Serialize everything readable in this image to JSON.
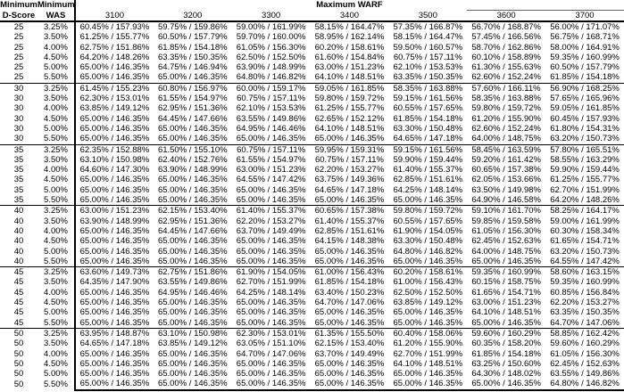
{
  "colors": {
    "text": "#000000",
    "background": "#ffffff",
    "border": "#000000"
  },
  "header": {
    "row1_col1": "Minimum",
    "row1_col2": "Minimum",
    "warf_label": "Maximum WARF",
    "row2_col1": "D-Score",
    "row2_col2": "WAS",
    "warf_columns": [
      "3100",
      "3200",
      "3300",
      "3400",
      "3500",
      "3600",
      "3700"
    ]
  },
  "table": {
    "groups": [
      {
        "d_score": "25",
        "rows": [
          {
            "was": "3.25%",
            "values": [
              "60.45% / 157.93%",
              "59.75% / 159.86%",
              "59.00% / 161.99%",
              "58.15% / 164.47%",
              "57.35% / 166.87%",
              "56.70% / 168.87%",
              "56.00% / 171.07%"
            ]
          },
          {
            "was": "3.50%",
            "values": [
              "61.25% / 155.77%",
              "60.50% / 157.79%",
              "59.70% / 160.00%",
              "58.95% / 162.14%",
              "58.15% / 164.47%",
              "57.45% / 166.56%",
              "56.75% / 168.71%"
            ]
          },
          {
            "was": "4.00%",
            "values": [
              "62.75% / 151.86%",
              "61.85% / 154.18%",
              "61.05% / 156.30%",
              "60.20% / 158.61%",
              "59.50% / 160.57%",
              "58.70% / 162.86%",
              "58.00% / 164.91%"
            ]
          },
          {
            "was": "4.50%",
            "values": [
              "64.20% / 148.26%",
              "63.35% / 150.35%",
              "62.50% / 152.50%",
              "61.60% / 154.84%",
              "60.75% / 157.11%",
              "60.10% / 158.89%",
              "59.35% / 160.99%"
            ]
          },
          {
            "was": "5.00%",
            "values": [
              "65.00% / 146.35%",
              "64.75% / 146.94%",
              "63.90% / 148.99%",
              "63.00% / 151.23%",
              "62.10% / 153.53%",
              "61.30% / 155.63%",
              "60.50% / 157.79%"
            ]
          },
          {
            "was": "5.50%",
            "values": [
              "65.00% / 146.35%",
              "65.00% / 146.35%",
              "64.80% / 146.82%",
              "64.10% / 148.51%",
              "63.35% / 150.35%",
              "62.60% / 152.24%",
              "61.85% / 154.18%"
            ]
          }
        ]
      },
      {
        "d_score": "30",
        "rows": [
          {
            "was": "3.25%",
            "values": [
              "61.45% / 155.23%",
              "60.80% / 156.97%",
              "60.00% / 159.17%",
              "59.05% / 161.85%",
              "58.35% / 163.88%",
              "57.60% / 166.11%",
              "56.90% / 168.25%"
            ]
          },
          {
            "was": "3.50%",
            "values": [
              "62.30% / 153.01%",
              "61.55% / 154.97%",
              "60.75% / 157.11%",
              "59.80% / 159.72%",
              "59.15% / 161.56%",
              "58.35% / 163.88%",
              "57.65% / 165.96%"
            ]
          },
          {
            "was": "4.00%",
            "values": [
              "63.85% / 149.12%",
              "62.95% / 151.36%",
              "62.10% / 153.53%",
              "61.25% / 155.77%",
              "60.55% / 157.65%",
              "59.80% / 159.72%",
              "59.05% / 161.85%"
            ]
          },
          {
            "was": "4.50%",
            "values": [
              "65.00% / 146.35%",
              "64.45% / 147.66%",
              "63.55% / 149.86%",
              "62.65% / 152.12%",
              "61.85% / 154.18%",
              "61.20% / 155.90%",
              "60.45% / 157.93%"
            ]
          },
          {
            "was": "5.00%",
            "values": [
              "65.00% / 146.35%",
              "65.00% / 146.35%",
              "64.95% / 146.46%",
              "64.10% / 148.51%",
              "63.30% / 150.48%",
              "62.60% / 152.24%",
              "61.80% / 154.31%"
            ]
          },
          {
            "was": "5.50%",
            "values": [
              "65.00% / 146.35%",
              "65.00% / 146.35%",
              "65.00% / 146.35%",
              "65.00% / 146.35%",
              "64.65% / 147.18%",
              "64.00% / 148.75%",
              "63.20% / 150.73%"
            ]
          }
        ]
      },
      {
        "d_score": "35",
        "rows": [
          {
            "was": "3.25%",
            "values": [
              "62.35% / 152.88%",
              "61.50% / 155.10%",
              "60.75% / 157.11%",
              "59.95% / 159.31%",
              "59.15% / 161.56%",
              "58.45% / 163.59%",
              "57.80% / 165.51%"
            ]
          },
          {
            "was": "3.50%",
            "values": [
              "63.10% / 150.98%",
              "62.40% / 152.76%",
              "61.55% / 154.97%",
              "60.75% / 157.11%",
              "59.90% / 159.44%",
              "59.20% / 161.42%",
              "58.55% / 163.29%"
            ]
          },
          {
            "was": "4.00%",
            "values": [
              "64.60% / 147.30%",
              "63.90% / 148.99%",
              "63.00% / 151.23%",
              "62.20% / 153.27%",
              "61.40% / 155.37%",
              "60.65% / 157.38%",
              "59.90% / 159.44%"
            ]
          },
          {
            "was": "4.50%",
            "values": [
              "65.00% / 146.35%",
              "65.00% / 146.35%",
              "64.55% / 147.42%",
              "63.75% / 149.36%",
              "62.85% / 151.61%",
              "62.05% / 153.66%",
              "61.25% / 155.77%"
            ]
          },
          {
            "was": "5.00%",
            "values": [
              "65.00% / 146.35%",
              "65.00% / 146.35%",
              "65.00% / 146.35%",
              "64.65% / 147.18%",
              "64.25% / 148.14%",
              "63.50% / 149.98%",
              "62.70% / 151.99%"
            ]
          },
          {
            "was": "5.50%",
            "values": [
              "65.00% / 146.35%",
              "65.00% / 146.35%",
              "65.00% / 146.35%",
              "65.00% / 146.35%",
              "65.00% / 146.35%",
              "64.90% / 146.58%",
              "64.20% / 148.26%"
            ]
          }
        ]
      },
      {
        "d_score": "40",
        "rows": [
          {
            "was": "3.25%",
            "values": [
              "63.00% / 151.23%",
              "62.15% / 153.40%",
              "61.40% / 155.37%",
              "60.65% / 157.38%",
              "59.80% / 159.72%",
              "59.10% / 161.70%",
              "58.25% / 164.17%"
            ]
          },
          {
            "was": "3.50%",
            "values": [
              "63.90% / 148.99%",
              "62.95% / 151.36%",
              "62.20% / 153.27%",
              "61.40% / 155.37%",
              "60.55% / 157.65%",
              "59.85% / 159.58%",
              "59.00% / 161.99%"
            ]
          },
          {
            "was": "4.00%",
            "values": [
              "65.00% / 146.35%",
              "64.45% / 147.66%",
              "63.70% / 149.49%",
              "62.85% / 151.61%",
              "61.90% / 154.05%",
              "61.05% / 156.30%",
              "60.30% / 158.34%"
            ]
          },
          {
            "was": "4.50%",
            "values": [
              "65.00% / 146.35%",
              "65.00% / 146.35%",
              "65.00% / 146.35%",
              "64.15% / 148.38%",
              "63.30% / 150.48%",
              "62.45% / 152.63%",
              "61.65% / 154.71%"
            ]
          },
          {
            "was": "5.00%",
            "values": [
              "65.00% / 146.35%",
              "65.00% / 146.35%",
              "65.00% / 146.35%",
              "65.00% / 146.35%",
              "64.80% / 146.82%",
              "64.00% / 148.75%",
              "63.20% / 150.73%"
            ]
          },
          {
            "was": "5.50%",
            "values": [
              "65.00% / 146.35%",
              "65.00% / 146.35%",
              "65.00% / 146.35%",
              "65.00% / 146.35%",
              "65.00% / 146.35%",
              "65.00% / 146.35%",
              "64.55% / 147.42%"
            ]
          }
        ]
      },
      {
        "d_score": "45",
        "rows": [
          {
            "was": "3.25%",
            "values": [
              "63.60% / 149.73%",
              "62.75% / 151.86%",
              "61.90% / 154.05%",
              "61.00% / 156.43%",
              "60.20% / 158.61%",
              "59.35% / 160.99%",
              "58.60% / 163.15%"
            ]
          },
          {
            "was": "3.50%",
            "values": [
              "64.35% / 147.90%",
              "63.55% / 149.86%",
              "62.70% / 151.99%",
              "61.85% / 154.18%",
              "61.00% / 156.43%",
              "60.15% / 158.75%",
              "59.35% / 160.99%"
            ]
          },
          {
            "was": "4.00%",
            "values": [
              "65.00% / 146.35%",
              "64.95% / 146.46%",
              "64.25% / 148.14%",
              "63.40% / 150.23%",
              "62.50% / 152.50%",
              "61.65% / 154.71%",
              "60.85% / 156.84%"
            ]
          },
          {
            "was": "4.50%",
            "values": [
              "65.00% / 146.35%",
              "65.00% / 146.35%",
              "65.00% / 146.35%",
              "64.70% / 147.06%",
              "63.85% / 149.12%",
              "63.00% / 151.23%",
              "62.20% / 153.27%"
            ]
          },
          {
            "was": "5.00%",
            "values": [
              "65.00% / 146.35%",
              "65.00% / 146.35%",
              "65.00% / 146.35%",
              "65.00% / 146.35%",
              "65.00% / 146.35%",
              "64.10% / 148.51%",
              "63.35% / 150.35%"
            ]
          },
          {
            "was": "5.50%",
            "values": [
              "65.00% / 146.35%",
              "65.00% / 146.35%",
              "65.00% / 146.35%",
              "65.00% / 146.35%",
              "65.00% / 146.35%",
              "65.00% / 146.35%",
              "64.70% / 147.06%"
            ]
          }
        ]
      },
      {
        "d_score": "50",
        "rows": [
          {
            "was": "3.25%",
            "values": [
              "63.95% / 148.87%",
              "63.10% / 150.98%",
              "62.30% / 153.01%",
              "61.35% / 155.50%",
              "60.40% / 158.06%",
              "59.60% / 160.29%",
              "58.85% / 162.42%"
            ]
          },
          {
            "was": "3.50%",
            "values": [
              "64.65% / 147.18%",
              "63.85% / 149.12%",
              "63.05% / 151.10%",
              "62.15% / 153.40%",
              "61.20% / 155.90%",
              "60.35% / 158.20%",
              "59.60% / 160.29%"
            ]
          },
          {
            "was": "4.00%",
            "values": [
              "65.00% / 146.35%",
              "65.00% / 146.35%",
              "64.70% / 147.06%",
              "63.70% / 149.49%",
              "62.70% / 151.99%",
              "61.85% / 154.18%",
              "61.05% / 156.30%"
            ]
          },
          {
            "was": "4.50%",
            "values": [
              "65.00% / 146.35%",
              "65.00% / 146.35%",
              "65.00% / 146.35%",
              "65.00% / 146.35%",
              "64.10% / 148.51%",
              "63.25% / 150.60%",
              "62.45% / 152.63%"
            ]
          },
          {
            "was": "5.00%",
            "values": [
              "65.00% / 146.35%",
              "65.00% / 146.35%",
              "65.00% / 146.35%",
              "65.00% / 146.35%",
              "65.00% / 146.35%",
              "64.30% / 148.02%",
              "63.55% / 149.86%"
            ]
          },
          {
            "was": "5.50%",
            "values": [
              "65.00% / 146.35%",
              "65.00% / 146.35%",
              "65.00% / 146.35%",
              "65.00% / 146.35%",
              "65.00% / 146.35%",
              "65.00% / 146.35%",
              "64.80% / 146.82%"
            ]
          }
        ]
      }
    ]
  }
}
